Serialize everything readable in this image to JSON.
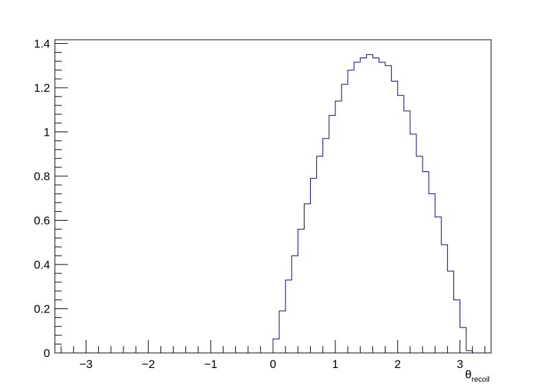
{
  "chart_data": {
    "type": "histogram",
    "title": "",
    "xlabel": "θ",
    "xlabel_subscript": "recoil",
    "ylabel": "",
    "xlim": [
      -3.5,
      3.5
    ],
    "ylim": [
      0,
      1.4
    ],
    "grid": false,
    "line_color": "#000080",
    "x_ticks": [
      -3,
      -2,
      -1,
      0,
      1,
      2,
      3
    ],
    "x_tick_labels": [
      "−3",
      "−2",
      "−1",
      "0",
      "1",
      "2",
      "3"
    ],
    "y_ticks": [
      0,
      0.2,
      0.4,
      0.6,
      0.8,
      1,
      1.2,
      1.4
    ],
    "y_tick_labels": [
      "0",
      "0.2",
      "0.4",
      "0.6",
      "0.8",
      "1",
      "1.2",
      "1.4"
    ],
    "bin_edges": [
      -3.5,
      -3.4,
      -3.3,
      -3.2,
      -3.1,
      -3.0,
      -2.9,
      -2.8,
      -2.7,
      -2.6,
      -2.5,
      -2.4,
      -2.3,
      -2.2,
      -2.1,
      -2.0,
      -1.9,
      -1.8,
      -1.7,
      -1.6,
      -1.5,
      -1.4,
      -1.3,
      -1.2,
      -1.1,
      -1.0,
      -0.9,
      -0.8,
      -0.7,
      -0.6,
      -0.5,
      -0.4,
      -0.3,
      -0.2,
      -0.1,
      0.0,
      0.1,
      0.2,
      0.3,
      0.4,
      0.5,
      0.6,
      0.7,
      0.8,
      0.9,
      1.0,
      1.1,
      1.2,
      1.3,
      1.4,
      1.5,
      1.6,
      1.7,
      1.8,
      1.9,
      2.0,
      2.1,
      2.2,
      2.3,
      2.4,
      2.5,
      2.6,
      2.7,
      2.8,
      2.9,
      3.0,
      3.1,
      3.2,
      3.3,
      3.4,
      3.5
    ],
    "values": [
      0,
      0,
      0,
      0,
      0,
      0,
      0,
      0,
      0,
      0,
      0,
      0,
      0,
      0,
      0,
      0,
      0,
      0,
      0,
      0,
      0,
      0,
      0,
      0,
      0,
      0,
      0,
      0,
      0,
      0,
      0,
      0,
      0,
      0,
      0,
      0.063,
      0.19,
      0.33,
      0.44,
      0.56,
      0.675,
      0.79,
      0.89,
      0.97,
      1.075,
      1.14,
      1.215,
      1.28,
      1.315,
      1.335,
      1.35,
      1.335,
      1.315,
      1.3,
      1.23,
      1.165,
      1.095,
      0.99,
      0.89,
      0.82,
      0.72,
      0.615,
      0.49,
      0.37,
      0.24,
      0.115,
      0.01,
      0,
      0,
      0
    ]
  }
}
